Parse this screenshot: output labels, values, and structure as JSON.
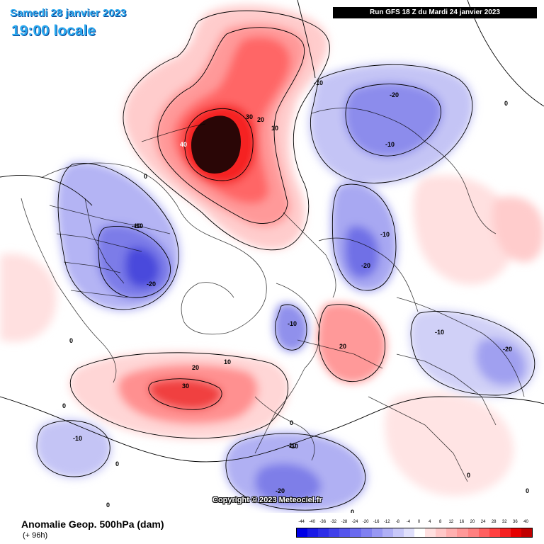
{
  "header": {
    "date_line": "Samedi 28 janvier 2023",
    "time_line": "19:00 locale",
    "run_banner": "Run GFS 18 Z du Mardi 24 janvier 2023"
  },
  "footer": {
    "title": "Anomalie Geop. 500hPa (dam)",
    "forecast_hour": "(+ 96h)",
    "copyright": "Copyright © 2023 Meteociel.fr"
  },
  "color_scale": {
    "labels": [
      "-44",
      "-40",
      "-36",
      "-32",
      "-28",
      "-24",
      "-20",
      "-16",
      "-12",
      "-8",
      "-4",
      "0",
      "4",
      "8",
      "12",
      "16",
      "20",
      "24",
      "28",
      "32",
      "36",
      "40"
    ],
    "colors": [
      "#0000e6",
      "#1a1ae6",
      "#2d2de8",
      "#4040ea",
      "#5555ec",
      "#6a6aef",
      "#8080f1",
      "#9898f4",
      "#b0b0f6",
      "#c8c8f9",
      "#e0e0fc",
      "#ffffff",
      "#ffe0e0",
      "#ffc8c8",
      "#ffb0b0",
      "#ff9898",
      "#ff8080",
      "#ff6060",
      "#ff4040",
      "#f52020",
      "#e60000",
      "#c00000"
    ]
  },
  "contour_labels": [
    {
      "text": "-10"
    },
    {
      "text": "-20"
    },
    {
      "text": "-10"
    },
    {
      "text": "0"
    },
    {
      "text": "-10"
    },
    {
      "text": "-20"
    },
    {
      "text": "30"
    },
    {
      "text": "20"
    },
    {
      "text": "10"
    },
    {
      "text": "40"
    },
    {
      "text": "0"
    },
    {
      "text": "-10"
    },
    {
      "text": "-20"
    },
    {
      "text": "-10"
    },
    {
      "text": "-20"
    },
    {
      "text": "0"
    },
    {
      "text": "-10"
    },
    {
      "text": "20"
    },
    {
      "text": "-10"
    },
    {
      "text": "-10"
    },
    {
      "text": "20"
    },
    {
      "text": "10"
    },
    {
      "text": "30"
    },
    {
      "text": "0"
    },
    {
      "text": "0"
    },
    {
      "text": "-10"
    },
    {
      "text": "-10"
    },
    {
      "text": "-20"
    },
    {
      "text": "0"
    },
    {
      "text": "0"
    },
    {
      "text": "0"
    },
    {
      "text": "0"
    },
    {
      "text": "0"
    },
    {
      "text": "-10"
    }
  ]
}
